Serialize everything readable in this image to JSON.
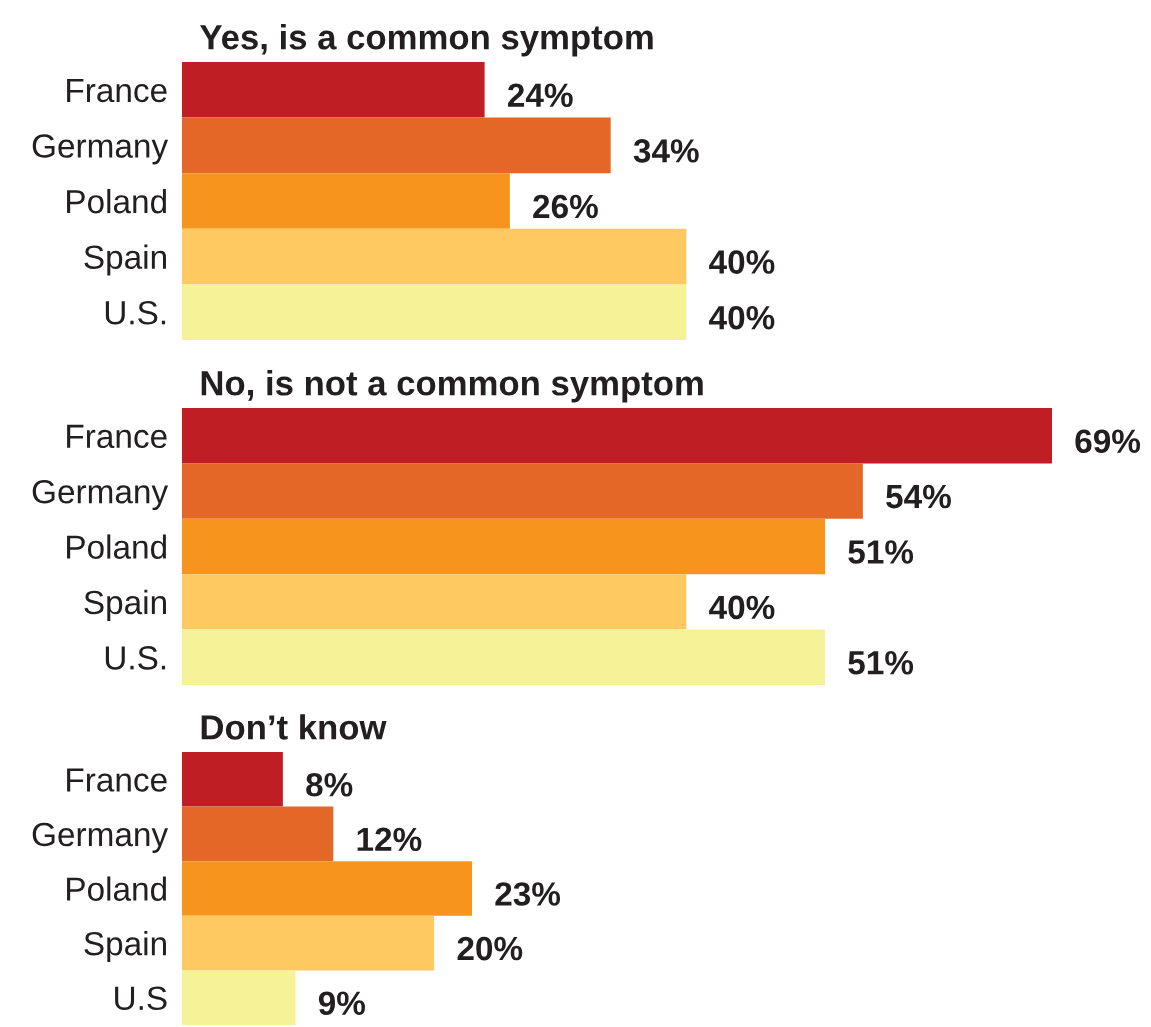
{
  "chart_data": [
    {
      "type": "bar",
      "orientation": "horizontal",
      "title": "Yes, is a common symptom",
      "tick_labels": "y",
      "categories": [
        "France",
        "Germany",
        "Poland",
        "Spain",
        "U.S."
      ],
      "values": [
        24,
        34,
        26,
        40,
        40
      ],
      "value_labels": [
        "24%",
        "34%",
        "26%",
        "40%",
        "40%"
      ],
      "colors": [
        "#be1e24",
        "#e36726",
        "#f7941e",
        "#fdc960",
        "#f5f297"
      ]
    },
    {
      "type": "bar",
      "orientation": "horizontal",
      "title": "No, is not a common symptom",
      "tick_labels": "y",
      "categories": [
        "France",
        "Germany",
        "Poland",
        "Spain",
        "U.S."
      ],
      "values": [
        69,
        54,
        51,
        40,
        51
      ],
      "value_labels": [
        "69%",
        "54%",
        "51%",
        "40%",
        "51%"
      ],
      "colors": [
        "#be1e24",
        "#e36726",
        "#f7941e",
        "#fdc960",
        "#f5f297"
      ]
    },
    {
      "type": "bar",
      "orientation": "horizontal",
      "title": "Don’t know",
      "tick_labels": "y",
      "categories": [
        "France",
        "Germany",
        "Poland",
        "Spain",
        "U.S"
      ],
      "values": [
        8,
        12,
        23,
        20,
        9
      ],
      "value_labels": [
        "8%",
        "12%",
        "23%",
        "20%",
        "9%"
      ],
      "colors": [
        "#be1e24",
        "#e36726",
        "#f7941e",
        "#fdc960",
        "#f5f297"
      ]
    }
  ]
}
